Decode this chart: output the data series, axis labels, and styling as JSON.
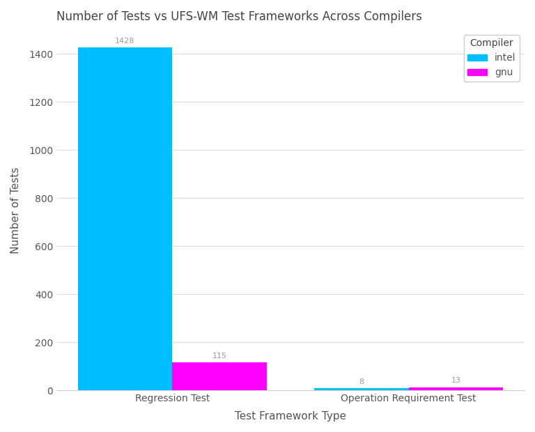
{
  "title": "Number of Tests vs UFS-WM Test Frameworks Across Compilers",
  "xlabel": "Test Framework Type",
  "ylabel": "Number of Tests",
  "categories": [
    "Regression Test",
    "Operation Requirement Test"
  ],
  "intel_values": [
    1428,
    8
  ],
  "gnu_values": [
    115,
    13
  ],
  "intel_color": "#00BFFF",
  "gnu_color": "#FF00FF",
  "bar_width": 0.4,
  "background_color": "#ffffff",
  "legend_title": "Compiler",
  "legend_labels": [
    "intel",
    "gnu"
  ],
  "title_fontsize": 12,
  "label_fontsize": 11,
  "tick_fontsize": 10,
  "annotation_fontsize": 8,
  "ylim": [
    0,
    1500
  ],
  "title_color": "#444444",
  "label_color": "#555555",
  "tick_color": "#555555",
  "annotation_color": "#999999",
  "grid_color": "#dddddd",
  "spine_color": "#cccccc"
}
